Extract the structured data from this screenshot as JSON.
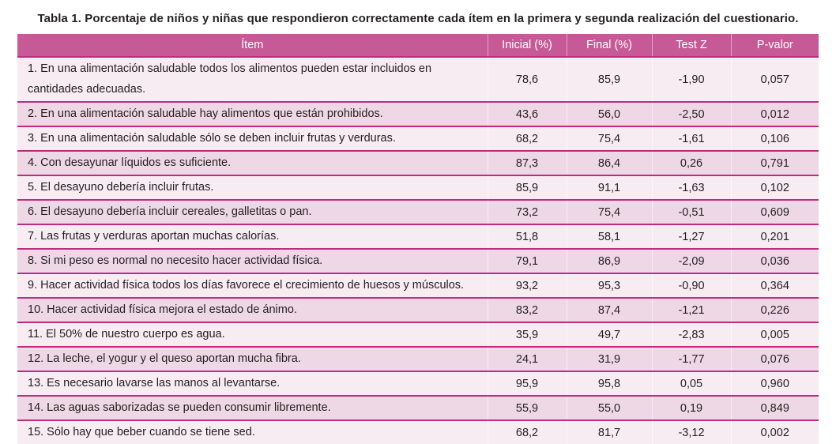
{
  "caption": "Tabla 1. Porcentaje de niños y niñas que respondieron correctamente cada ítem en la primera y segunda realización del cuestionario.",
  "colors": {
    "header_bg": "#c65a97",
    "header_text": "#ffffff",
    "row_light": "#f8ecf3",
    "row_dark": "#efd8e6",
    "line": "#c02b80",
    "body_text": "#231f20",
    "title_text": "#262223"
  },
  "table": {
    "columns": [
      "Ítem",
      "Inicial (%)",
      "Final (%)",
      "Test Z",
      "P-valor"
    ],
    "rows": [
      {
        "item": "1. En una alimentación saludable todos los alimentos pueden estar incluidos en cantidades adecuadas.",
        "inicial": "78,6",
        "final": "85,9",
        "test_z": "-1,90",
        "p_valor": "0,057"
      },
      {
        "item": "2. En una alimentación saludable hay alimentos que están prohibidos.",
        "inicial": "43,6",
        "final": "56,0",
        "test_z": "-2,50",
        "p_valor": "0,012"
      },
      {
        "item": "3. En una alimentación saludable sólo se deben incluir frutas y verduras.",
        "inicial": "68,2",
        "final": "75,4",
        "test_z": "-1,61",
        "p_valor": "0,106"
      },
      {
        "item": "4. Con desayunar líquidos es suficiente.",
        "inicial": "87,3",
        "final": "86,4",
        "test_z": "0,26",
        "p_valor": "0,791"
      },
      {
        "item": "5. El desayuno debería incluir frutas.",
        "inicial": "85,9",
        "final": "91,1",
        "test_z": "-1,63",
        "p_valor": "0,102"
      },
      {
        "item": "6. El desayuno debería incluir cereales, galletitas o pan.",
        "inicial": "73,2",
        "final": "75,4",
        "test_z": "-0,51",
        "p_valor": "0,609"
      },
      {
        "item": "7. Las frutas y verduras aportan muchas calorías.",
        "inicial": "51,8",
        "final": "58,1",
        "test_z": "-1,27",
        "p_valor": "0,201"
      },
      {
        "item": "8. Si mi peso es normal no necesito hacer actividad física.",
        "inicial": "79,1",
        "final": "86,9",
        "test_z": "-2,09",
        "p_valor": "0,036"
      },
      {
        "item": "9. Hacer actividad física todos los días favorece el crecimiento de huesos y músculos.",
        "inicial": "93,2",
        "final": "95,3",
        "test_z": "-0,90",
        "p_valor": "0,364"
      },
      {
        "item": "10. Hacer actividad física mejora el estado de ánimo.",
        "inicial": "83,2",
        "final": "87,4",
        "test_z": "-1,21",
        "p_valor": "0,226"
      },
      {
        "item": "11. El 50% de nuestro cuerpo es agua.",
        "inicial": "35,9",
        "final": "49,7",
        "test_z": "-2,83",
        "p_valor": "0,005"
      },
      {
        "item": "12. La leche, el yogur y el queso aportan mucha fibra.",
        "inicial": "24,1",
        "final": "31,9",
        "test_z": "-1,77",
        "p_valor": "0,076"
      },
      {
        "item": "13. Es necesario lavarse las manos al levantarse.",
        "inicial": "95,9",
        "final": "95,8",
        "test_z": "0,05",
        "p_valor": "0,960"
      },
      {
        "item": "14. Las aguas saborizadas se pueden consumir libremente.",
        "inicial": "55,9",
        "final": "55,0",
        "test_z": "0,19",
        "p_valor": "0,849"
      },
      {
        "item": "15. Sólo hay que beber cuando se tiene sed.",
        "inicial": "68,2",
        "final": "81,7",
        "test_z": "-3,12",
        "p_valor": "0,002"
      }
    ]
  }
}
